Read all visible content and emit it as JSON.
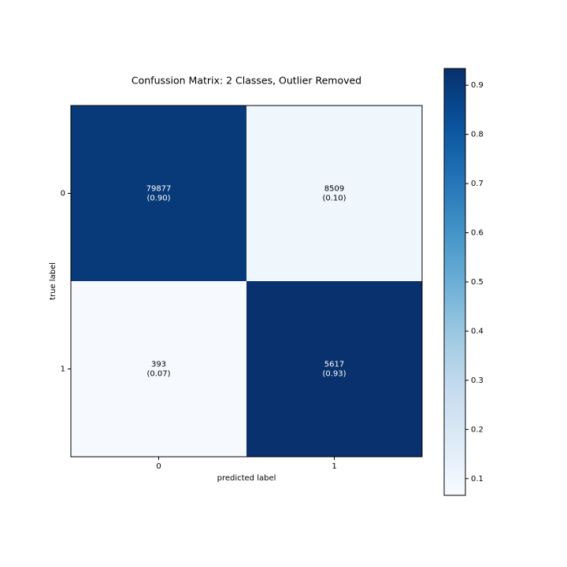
{
  "chart_data": {
    "type": "heatmap",
    "title": "Confussion Matrix: 2 Classes, Outlier Removed",
    "x_label": "predicted label",
    "y_label": "true label",
    "x_categories": [
      "0",
      "1"
    ],
    "y_categories": [
      "0",
      "1"
    ],
    "counts": [
      [
        79877,
        8509
      ],
      [
        393,
        5617
      ]
    ],
    "values": [
      [
        0.9,
        0.1
      ],
      [
        0.07,
        0.93
      ]
    ],
    "value_labels": [
      [
        "(0.90)",
        "(0.10)"
      ],
      [
        "(0.07)",
        "(0.93)"
      ]
    ],
    "colormap": "Blues",
    "clim": [
      0.066,
      0.934
    ],
    "cticks": [
      0.1,
      0.2,
      0.3,
      0.4,
      0.5,
      0.6,
      0.7,
      0.8,
      0.9
    ]
  }
}
